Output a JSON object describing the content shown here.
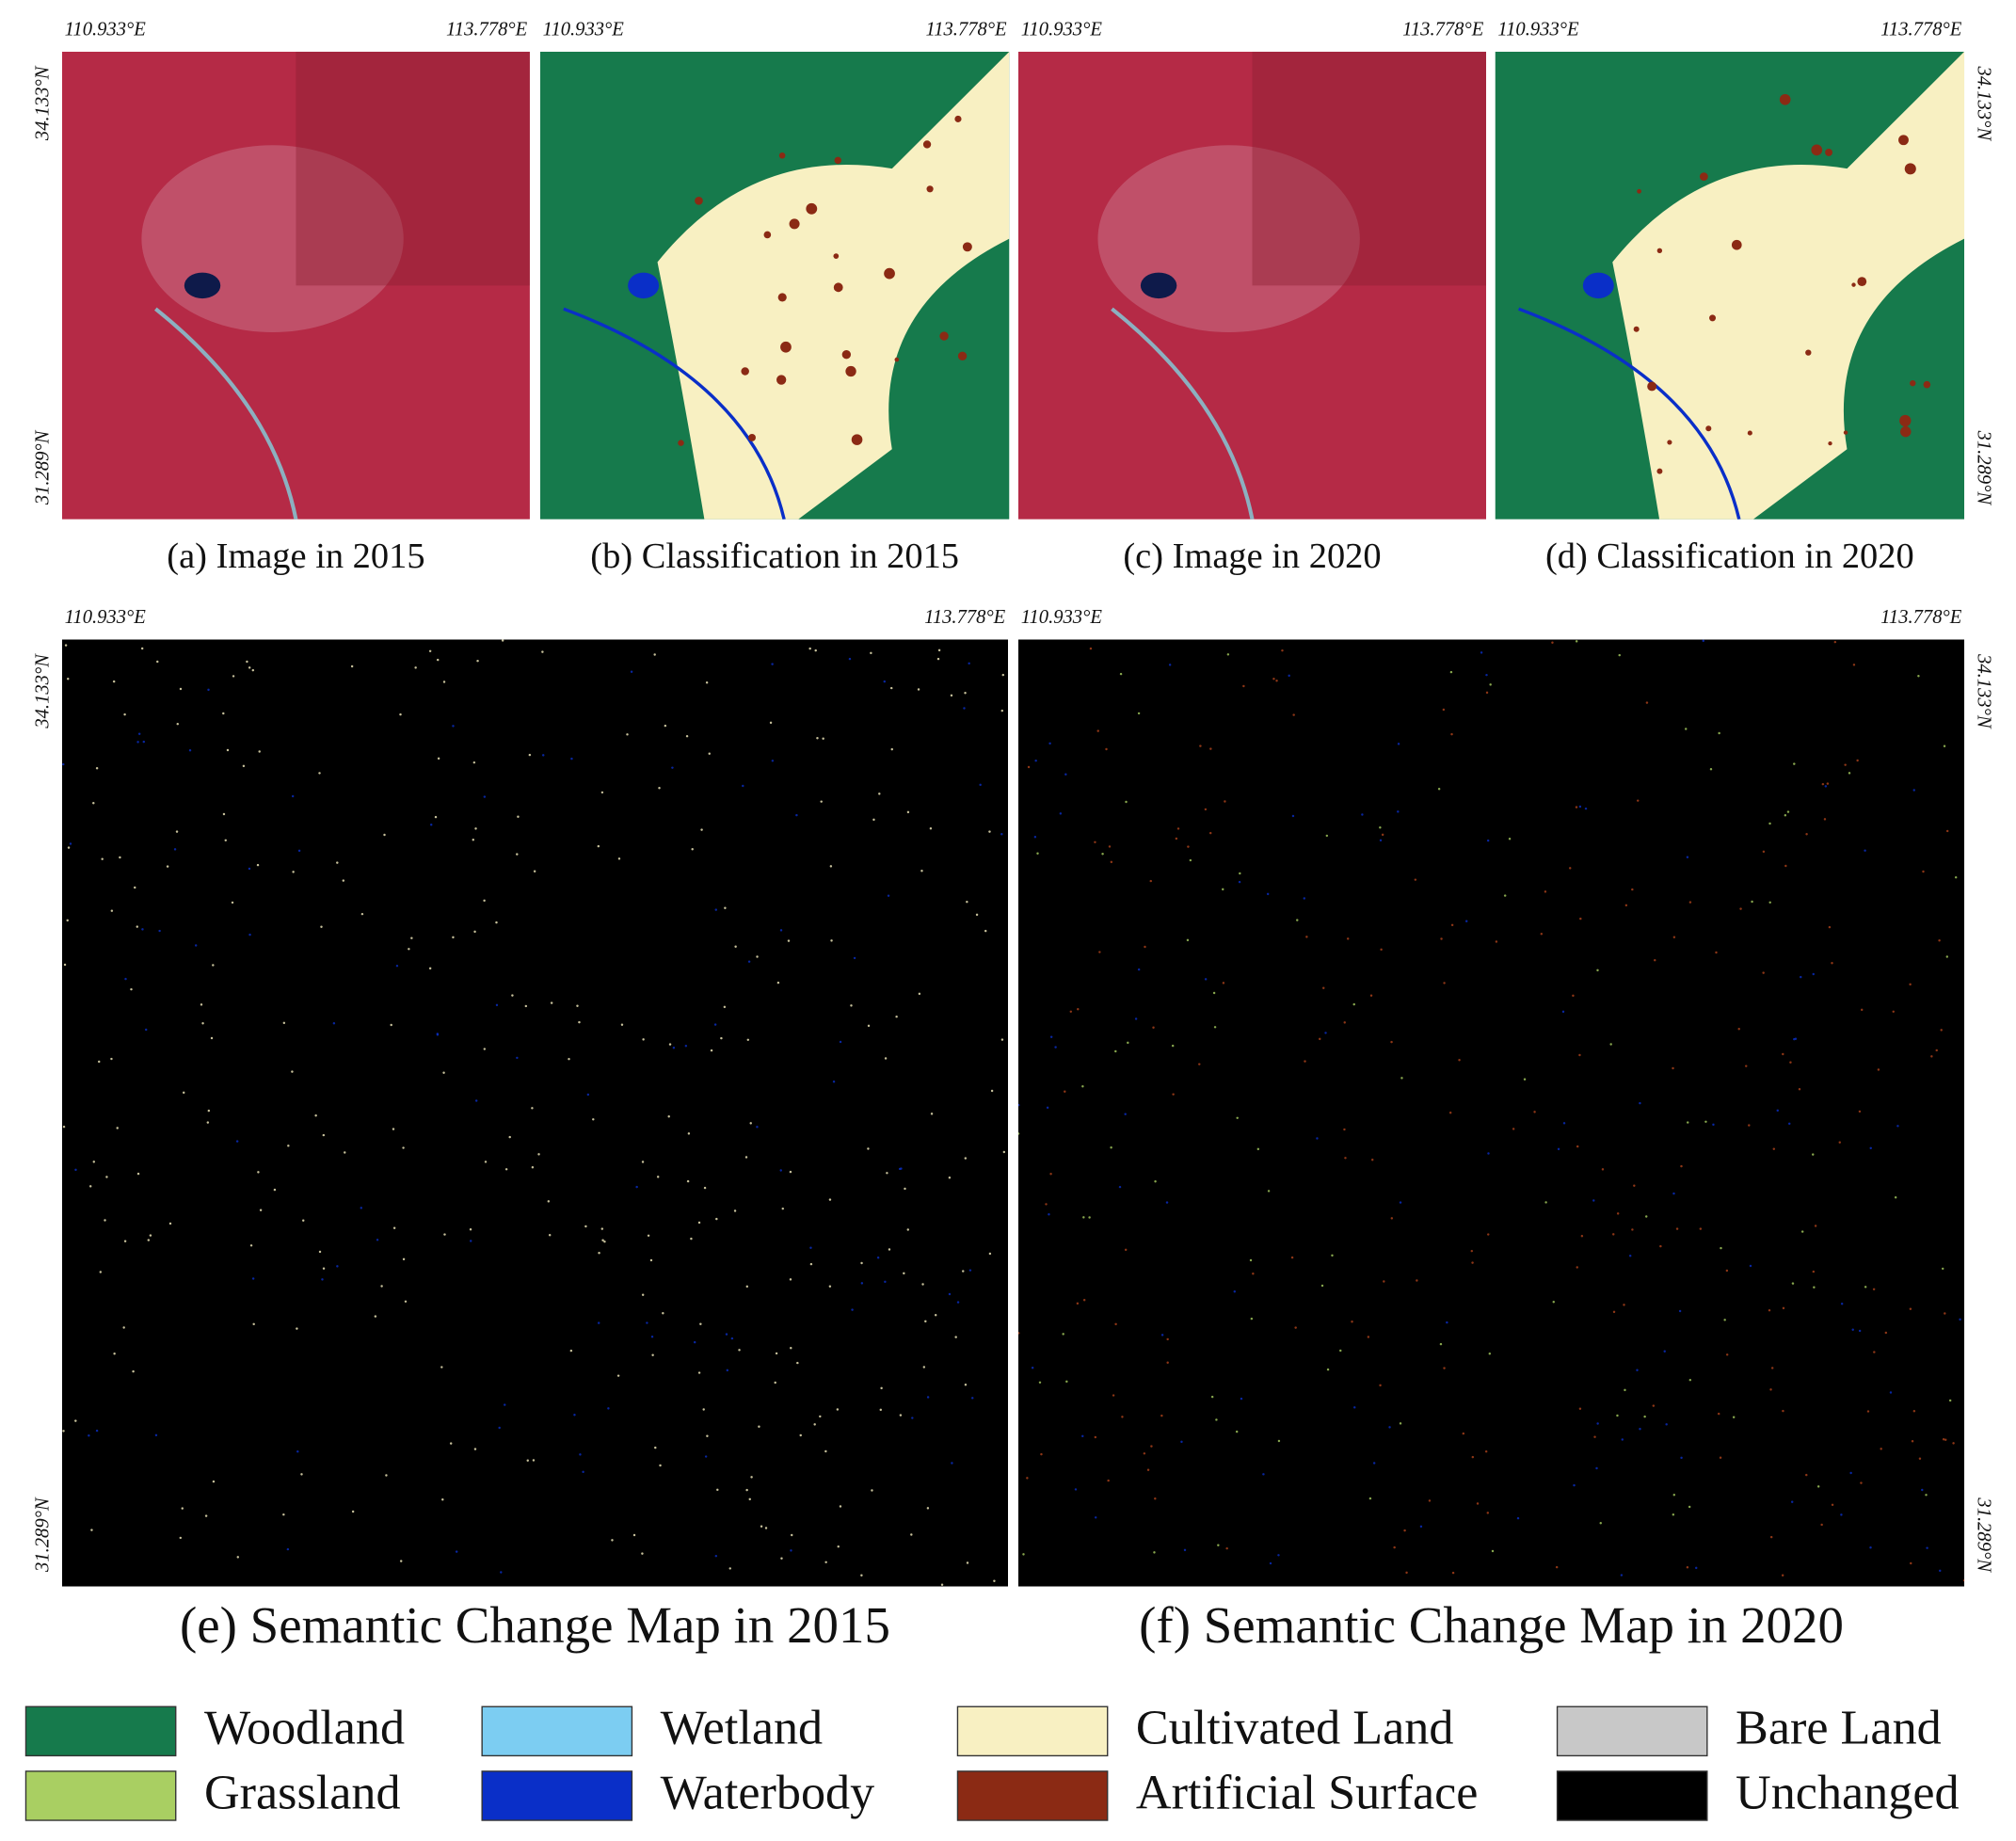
{
  "panels": [
    {
      "caption": "(a) Image in 2015",
      "lon_left": "110.933°E",
      "lon_right": "113.778°E",
      "lat_top": "34.133°N",
      "lat_bottom": "31.289°N"
    },
    {
      "caption": "(b) Classification in 2015",
      "lon_left": "110.933°E",
      "lon_right": "113.778°E"
    },
    {
      "caption": "(c) Image in 2020",
      "lon_left": "110.933°E",
      "lon_right": "113.778°E"
    },
    {
      "caption": "(d) Classification in 2020",
      "lon_left": "110.933°E",
      "lon_right": "113.778°E",
      "lat_top": "34.133°N",
      "lat_bottom": "31.289°N"
    },
    {
      "caption": "(e) Semantic Change Map in 2015",
      "lon_left": "110.933°E",
      "lon_right": "113.778°E",
      "lat_top": "34.133°N",
      "lat_bottom": "31.289°N"
    },
    {
      "caption": "(f) Semantic Change Map in 2020",
      "lon_left": "110.933°E",
      "lon_right": "113.778°E",
      "lat_top": "34.133°N",
      "lat_bottom": "31.289°N"
    }
  ],
  "legend": [
    {
      "label": "Woodland",
      "color": "#167a4c"
    },
    {
      "label": "Wetland",
      "color": "#7ccdf2"
    },
    {
      "label": "Cultivated Land",
      "color": "#f8f0c2"
    },
    {
      "label": "Bare Land",
      "color": "#c8c8c8"
    },
    {
      "label": "Grassland",
      "color": "#a9cf62"
    },
    {
      "label": "Waterbody",
      "color": "#0a2fc8"
    },
    {
      "label": "Artificial Surface",
      "color": "#8b2a14"
    },
    {
      "label": "Unchanged",
      "color": "#000000"
    }
  ]
}
